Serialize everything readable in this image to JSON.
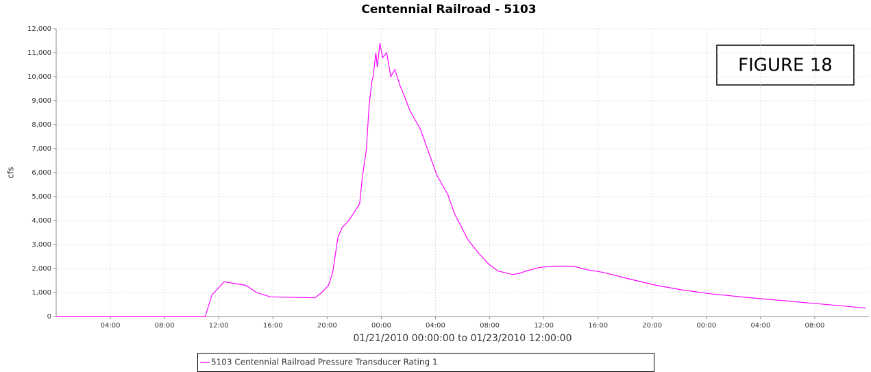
{
  "chart_data": {
    "type": "line",
    "title": "Centennial Railroad - 5103",
    "y_label": "cfs",
    "x_label": "01/21/2010 00:00:00 to 01/23/2010 12:00:00",
    "annotation": "FIGURE 18",
    "x": [
      0,
      11.0,
      11.5,
      12.4,
      14.0,
      14.8,
      15.8,
      19.1,
      19.6,
      20.1,
      20.4,
      20.8,
      21.1,
      21.6,
      22.4,
      22.6,
      22.9,
      23.1,
      23.3,
      23.4,
      23.6,
      23.7,
      23.9,
      24.1,
      24.4,
      24.7,
      25.0,
      25.4,
      25.7,
      26.1,
      26.5,
      26.9,
      27.4,
      28.1,
      28.9,
      29.4,
      30.4,
      31.1,
      31.9,
      32.6,
      33.7,
      34.2,
      34.7,
      35.7,
      36.7,
      38.2,
      39.2,
      40.3,
      42.8,
      44.3,
      46.3,
      48.3,
      50.9,
      52.9,
      55.9,
      57.9,
      59.8
    ],
    "series": [
      {
        "name": "5103 Centennial Railroad Pressure Transducer Rating 1",
        "color": "#ff00ff",
        "values": [
          0,
          0,
          900,
          1450,
          1300,
          1000,
          820,
          780,
          1000,
          1300,
          1800,
          3300,
          3700,
          4000,
          4700,
          5800,
          7000,
          8800,
          9800,
          10000,
          11000,
          10400,
          11400,
          10800,
          11000,
          10000,
          10300,
          9600,
          9200,
          8600,
          8200,
          7800,
          7000,
          5900,
          5100,
          4300,
          3200,
          2700,
          2200,
          1900,
          1750,
          1800,
          1900,
          2050,
          2100,
          2100,
          1950,
          1850,
          1500,
          1300,
          1100,
          950,
          800,
          700,
          550,
          450,
          350
        ]
      }
    ],
    "xlim": [
      0,
      60
    ],
    "xticks": [
      {
        "value": 4,
        "label": "04:00"
      },
      {
        "value": 8,
        "label": "08:00"
      },
      {
        "value": 12,
        "label": "12:00"
      },
      {
        "value": 16,
        "label": "16:00"
      },
      {
        "value": 20,
        "label": "20:00"
      },
      {
        "value": 24,
        "label": "00:00"
      },
      {
        "value": 28,
        "label": "04:00"
      },
      {
        "value": 32,
        "label": "08:00"
      },
      {
        "value": 36,
        "label": "12:00"
      },
      {
        "value": 40,
        "label": "16:00"
      },
      {
        "value": 44,
        "label": "20:00"
      },
      {
        "value": 48,
        "label": "00:00"
      },
      {
        "value": 52,
        "label": "04:00"
      },
      {
        "value": 56,
        "label": "08:00"
      }
    ],
    "ylim": [
      0,
      12000
    ],
    "yticks": [
      0,
      {
        "value": 1000,
        "label": "1,000"
      },
      {
        "value": 2000,
        "label": "2,000"
      },
      {
        "value": 3000,
        "label": "3,000"
      },
      {
        "value": 4000,
        "label": "4,000"
      },
      {
        "value": 5000,
        "label": "5,000"
      },
      {
        "value": 6000,
        "label": "6,000"
      },
      {
        "value": 7000,
        "label": "7,000"
      },
      {
        "value": 8000,
        "label": "8,000"
      },
      {
        "value": 9000,
        "label": "9,000"
      },
      {
        "value": 10000,
        "label": "10,000"
      },
      {
        "value": 11000,
        "label": "11,000"
      },
      {
        "value": 12000,
        "label": "12,000"
      }
    ],
    "grid": true
  }
}
